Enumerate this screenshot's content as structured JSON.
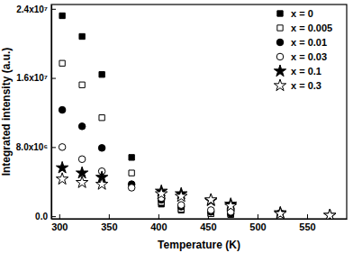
{
  "chart_data": {
    "type": "scatter",
    "x_label": "Temperature (K)",
    "y_label": "Integrated intensity (a.u.)",
    "xlim": [
      292,
      590
    ],
    "xticks": [
      300,
      350,
      400,
      450,
      500,
      550
    ],
    "ylim": [
      -300000,
      24500000
    ],
    "yticks": [
      {
        "value": 0,
        "label": "0.0"
      },
      {
        "value": 8000000,
        "label": "8.0x10⁶"
      },
      {
        "value": 16000000,
        "label": "1.6x10⁷"
      },
      {
        "value": 24000000,
        "label": "2.4x10⁷"
      }
    ],
    "legend": "top-right",
    "series": [
      {
        "name": "x = 0",
        "color": "#000000",
        "marker": "square",
        "x": [
          303,
          323,
          343,
          373,
          403,
          423,
          453,
          473,
          523
        ],
        "values": [
          23200000,
          20800000,
          16400000,
          6800000,
          1400000,
          700000,
          300000,
          200000,
          300000
        ]
      },
      {
        "name": "x = 0.005",
        "color": "#000000",
        "marker": "open-square",
        "x": [
          303,
          323,
          343,
          373,
          403,
          423,
          453,
          473,
          523
        ],
        "values": [
          17700000,
          15200000,
          11400000,
          5000000,
          1600000,
          800000,
          300000,
          200000,
          300000
        ]
      },
      {
        "name": "x = 0.01",
        "color": "#000000",
        "marker": "circle",
        "x": [
          303,
          323,
          343,
          373,
          403,
          423,
          453,
          473
        ],
        "values": [
          12300000,
          10400000,
          7900000,
          3700000,
          1900000,
          1100000,
          500000,
          300000
        ]
      },
      {
        "name": "x = 0.03",
        "color": "#000000",
        "marker": "open-circle",
        "x": [
          303,
          323,
          343,
          373,
          403,
          423,
          453,
          473
        ],
        "values": [
          8000000,
          6600000,
          5200000,
          3300000,
          2100000,
          1300000,
          700000,
          500000
        ]
      },
      {
        "name": "x = 0.1",
        "color": "#000000",
        "marker": "star",
        "x": [
          303,
          323,
          343,
          403,
          423,
          453,
          473,
          523,
          573
        ],
        "values": [
          5600000,
          5000000,
          4500000,
          2900000,
          2600000,
          1800000,
          1400000,
          400000,
          100000
        ]
      },
      {
        "name": "x = 0.3",
        "color": "#000000",
        "marker": "open-star",
        "x": [
          303,
          323,
          343,
          403,
          423,
          453,
          473,
          523,
          573
        ],
        "values": [
          4300000,
          3900000,
          3700000,
          2600000,
          2300000,
          1900000,
          1200000,
          300000,
          100000
        ]
      }
    ]
  }
}
